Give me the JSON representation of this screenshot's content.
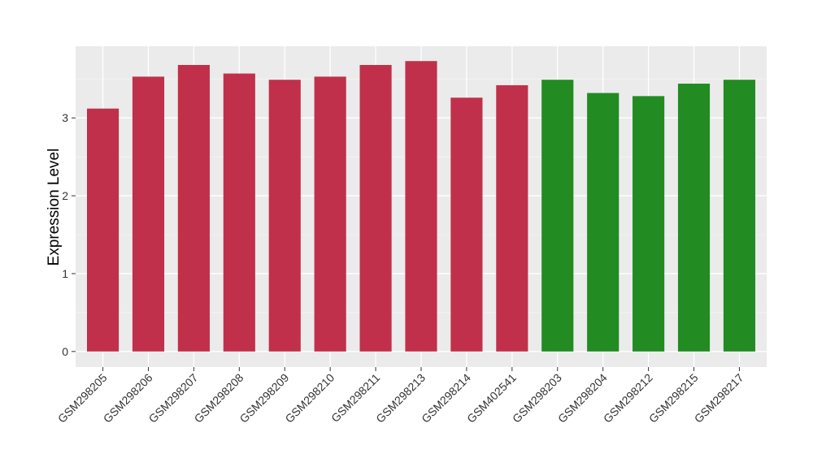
{
  "chart_data": {
    "type": "bar",
    "title": "",
    "xlabel": "",
    "ylabel": "Expression Level",
    "ylim": [
      -0.2,
      3.92
    ],
    "yticks": [
      0,
      1,
      2,
      3
    ],
    "grid": true,
    "categories": [
      "GSM298205",
      "GSM298206",
      "GSM298207",
      "GSM298208",
      "GSM298209",
      "GSM298210",
      "GSM298211",
      "GSM298213",
      "GSM298214",
      "GSM402541",
      "GSM298203",
      "GSM298204",
      "GSM298212",
      "GSM298215",
      "GSM298217"
    ],
    "values": [
      3.12,
      3.53,
      3.68,
      3.57,
      3.49,
      3.53,
      3.68,
      3.73,
      3.26,
      3.42,
      3.49,
      3.32,
      3.28,
      3.44,
      3.49
    ],
    "bar_colors": [
      "#c1304a",
      "#c1304a",
      "#c1304a",
      "#c1304a",
      "#c1304a",
      "#c1304a",
      "#c1304a",
      "#c1304a",
      "#c1304a",
      "#c1304a",
      "#228b22",
      "#228b22",
      "#228b22",
      "#228b22",
      "#228b22"
    ],
    "panel_background": "#ebebeb"
  }
}
